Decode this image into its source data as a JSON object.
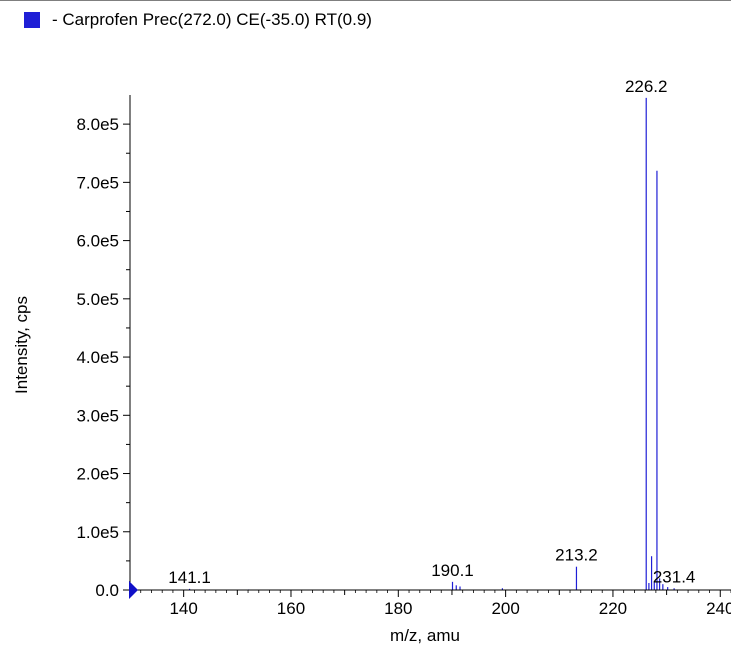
{
  "colors": {
    "series": "#1f1fd6",
    "axis": "#000000",
    "marker": "#1010c8"
  },
  "legend": {
    "label": "- Carprofen Prec(272.0) CE(-35.0) RT(0.9)",
    "swatch_color": "#1f1fd6"
  },
  "chart_data": {
    "type": "bar",
    "title": "",
    "xlabel": "m/z, amu",
    "ylabel": "Intensity, cps",
    "xlim": [
      130,
      242
    ],
    "ylim": [
      0,
      850000
    ],
    "x_ticks": [
      140,
      160,
      180,
      200,
      220,
      240
    ],
    "x_tick_labels": [
      "140",
      "160",
      "180",
      "200",
      "220",
      "240"
    ],
    "y_ticks": [
      0,
      100000,
      200000,
      300000,
      400000,
      500000,
      600000,
      700000,
      800000
    ],
    "y_tick_labels": [
      "0.0",
      "1.0e5",
      "2.0e5",
      "3.0e5",
      "4.0e5",
      "5.0e5",
      "6.0e5",
      "7.0e5",
      "8.0e5"
    ],
    "peaks": [
      {
        "mz": 141.1,
        "intensity": 2000
      },
      {
        "mz": 152.1,
        "intensity": 1000
      },
      {
        "mz": 190.1,
        "intensity": 14000
      },
      {
        "mz": 190.8,
        "intensity": 8000
      },
      {
        "mz": 191.5,
        "intensity": 6000
      },
      {
        "mz": 199.4,
        "intensity": 3000
      },
      {
        "mz": 213.2,
        "intensity": 40000
      },
      {
        "mz": 226.2,
        "intensity": 845000
      },
      {
        "mz": 226.7,
        "intensity": 12000
      },
      {
        "mz": 227.2,
        "intensity": 58000
      },
      {
        "mz": 227.7,
        "intensity": 15000
      },
      {
        "mz": 228.2,
        "intensity": 720000
      },
      {
        "mz": 228.7,
        "intensity": 20000
      },
      {
        "mz": 229.3,
        "intensity": 10000
      },
      {
        "mz": 230.2,
        "intensity": 5000
      },
      {
        "mz": 231.4,
        "intensity": 3000
      }
    ],
    "peak_labels": [
      {
        "mz": 141.1,
        "label": "141.1"
      },
      {
        "mz": 190.1,
        "label": "190.1"
      },
      {
        "mz": 213.2,
        "label": "213.2"
      },
      {
        "mz": 226.2,
        "label": "226.2"
      },
      {
        "mz": 231.4,
        "label": "231.4"
      }
    ]
  }
}
